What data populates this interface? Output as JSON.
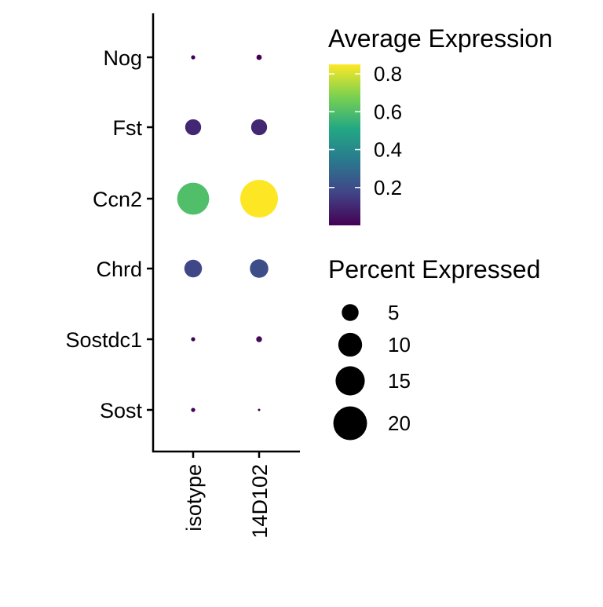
{
  "chart_data": {
    "type": "dot",
    "groups": [
      "isotype",
      "14D102"
    ],
    "features": [
      "Nog",
      "Fst",
      "Ccn2",
      "Chrd",
      "Sostdc1",
      "Sost"
    ],
    "points": [
      {
        "feature": "Nog",
        "group": "isotype",
        "avg_expression": 0.0,
        "pct_expressed": 0.3
      },
      {
        "feature": "Nog",
        "group": "14D102",
        "avg_expression": 0.0,
        "pct_expressed": 0.5
      },
      {
        "feature": "Fst",
        "group": "isotype",
        "avg_expression": 0.1,
        "pct_expressed": 4.5
      },
      {
        "feature": "Fst",
        "group": "14D102",
        "avg_expression": 0.1,
        "pct_expressed": 4.5
      },
      {
        "feature": "Ccn2",
        "group": "isotype",
        "avg_expression": 0.6,
        "pct_expressed": 18.0
      },
      {
        "feature": "Ccn2",
        "group": "14D102",
        "avg_expression": 0.85,
        "pct_expressed": 25.0
      },
      {
        "feature": "Chrd",
        "group": "isotype",
        "avg_expression": 0.18,
        "pct_expressed": 5.5
      },
      {
        "feature": "Chrd",
        "group": "14D102",
        "avg_expression": 0.2,
        "pct_expressed": 6.0
      },
      {
        "feature": "Sostdc1",
        "group": "isotype",
        "avg_expression": 0.0,
        "pct_expressed": 0.3
      },
      {
        "feature": "Sostdc1",
        "group": "14D102",
        "avg_expression": 0.02,
        "pct_expressed": 0.6
      },
      {
        "feature": "Sost",
        "group": "isotype",
        "avg_expression": 0.0,
        "pct_expressed": 0.3
      },
      {
        "feature": "Sost",
        "group": "14D102",
        "avg_expression": 0.0,
        "pct_expressed": 0.1
      }
    ],
    "color_legend": {
      "title": "Average Expression",
      "ticks": [
        0.2,
        0.4,
        0.6,
        0.8
      ],
      "tick_labels": [
        "0.2",
        "0.4",
        "0.6",
        "0.8"
      ],
      "range": [
        0.0,
        0.85
      ],
      "palette": [
        "#440154",
        "#414487",
        "#2a788e",
        "#22a884",
        "#7ad151",
        "#fde725"
      ]
    },
    "size_legend": {
      "title": "Percent Expressed",
      "values": [
        5,
        10,
        15,
        20
      ],
      "labels": [
        "5",
        "10",
        "15",
        "20"
      ]
    },
    "size_range": [
      0,
      25
    ],
    "grid": false,
    "legend_position": "right",
    "xlabel": "",
    "ylabel": ""
  }
}
